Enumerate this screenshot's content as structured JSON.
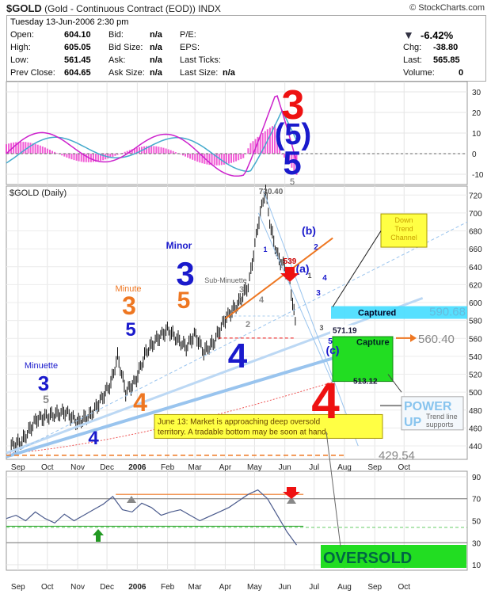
{
  "header": {
    "symbol": "$GOLD",
    "description": "(Gold - Continuous Contract (EOD))",
    "exchange": "INDX",
    "watermark": "© StockCharts.com",
    "date": "Tuesday 13-Jun-2006 2:30 pm"
  },
  "quote": {
    "open_label": "Open:",
    "open": "604.10",
    "high_label": "High:",
    "high": "605.05",
    "low_label": "Low:",
    "low": "561.45",
    "prev_label": "Prev Close:",
    "prev": "604.65",
    "bid_label": "Bid:",
    "bid": "n/a",
    "bidsize_label": "Bid Size:",
    "bidsize": "n/a",
    "ask_label": "Ask:",
    "ask": "n/a",
    "asksize_label": "Ask Size:",
    "asksize": "n/a",
    "pe_label": "P/E:",
    "eps_label": "EPS:",
    "lastticks_label": "Last Ticks:",
    "lastsize_label": "Last Size:",
    "lastsize": "n/a",
    "pct": "-6.42%",
    "chg_label": "Chg:",
    "chg": "-38.80",
    "last_label": "Last:",
    "last": "565.85",
    "vol_label": "Volume:",
    "vol": "0"
  },
  "colors": {
    "red": "#ee1111",
    "blue": "#1a1acc",
    "orange": "#ee7722",
    "lightblue": "#88bbee",
    "green": "#22dd22",
    "cyan": "#44ddff"
  },
  "chart_data": [
    {
      "type": "line",
      "panel": "MACD",
      "ylim": [
        -15,
        35
      ],
      "yticks": [
        30,
        20,
        10,
        0,
        -10
      ],
      "macd_end": -8,
      "signal_end": 6
    },
    {
      "type": "line",
      "panel": "price",
      "title": "$GOLD (Daily)",
      "ylim": [
        425,
        730
      ],
      "yticks": [
        720,
        700,
        680,
        660,
        640,
        620,
        600,
        580,
        560,
        540,
        520,
        500,
        480,
        460,
        440
      ],
      "x_ticks": [
        "Sep",
        "Oct",
        "Nov",
        "Dec",
        "2006",
        "Feb",
        "Mar",
        "Apr",
        "May",
        "Jun",
        "Jul",
        "Aug",
        "Sep",
        "Oct"
      ],
      "price_points": [
        [
          "2005-08-25",
          440
        ],
        [
          "2005-09-05",
          445
        ],
        [
          "2005-09-20",
          470
        ],
        [
          "2005-10-05",
          474
        ],
        [
          "2005-10-20",
          478
        ],
        [
          "2005-11-01",
          466
        ],
        [
          "2005-11-15",
          475
        ],
        [
          "2005-11-25",
          492
        ],
        [
          "2005-12-05",
          510
        ],
        [
          "2005-12-12",
          540
        ],
        [
          "2005-12-20",
          500
        ],
        [
          "2005-12-30",
          512
        ],
        [
          "2006-01-10",
          545
        ],
        [
          "2006-01-20",
          558
        ],
        [
          "2006-02-01",
          570
        ],
        [
          "2006-02-10",
          560
        ],
        [
          "2006-02-20",
          550
        ],
        [
          "2006-03-01",
          565
        ],
        [
          "2006-03-10",
          545
        ],
        [
          "2006-03-20",
          555
        ],
        [
          "2006-04-01",
          582
        ],
        [
          "2006-04-15",
          600
        ],
        [
          "2006-04-25",
          620
        ],
        [
          "2006-05-05",
          690
        ],
        [
          "2006-05-12",
          726
        ],
        [
          "2006-05-18",
          680
        ],
        [
          "2006-05-25",
          650
        ],
        [
          "2006-06-01",
          640
        ],
        [
          "2006-06-06",
          625
        ],
        [
          "2006-06-13",
          566
        ]
      ],
      "levels": [
        {
          "label": "590.68",
          "value": 590.68
        },
        {
          "label": "560.40",
          "value": 560.4
        },
        {
          "label": "429.54",
          "value": 429.54
        }
      ],
      "annotations": {
        "high": "730.40",
        "l539": "539",
        "l571": "571.19",
        "l513": "513.12",
        "captured": "Captured",
        "capture": "Capture",
        "minute": "Minute",
        "minuette": "Minuette",
        "minor": "Minor",
        "subminuette": "Sub-Minuette",
        "downtrend": "Down Trend Channel",
        "power": "POWER",
        "up": "UP",
        "trendline": "Trend line supports",
        "note": "June 13: Market is approaching deep oversold territory.  A tradable bottom may be soon at hand.",
        "macd_wave_3": "3",
        "macd_wave_5p": "(5)",
        "macd_wave_5": "5",
        "macd_wave_5s": "5",
        "wave_big4": "4",
        "wave_blue4a": "4",
        "wave_blue4b": "4",
        "wave_blue3a": "3",
        "wave_blue5a": "5",
        "wave_or3": "3",
        "wave_or4": "4",
        "wave_or5": "5",
        "wave_g5": "5",
        "wave_minor3": "3",
        "wave_b": "(b)",
        "wave_a": "(a)",
        "wave_c": "(c)",
        "s1": "1",
        "s2": "2",
        "s3": "3",
        "s4": "4",
        "t1": "1",
        "t2": "2",
        "t3": "3",
        "t4": "4",
        "t5": "5",
        "t3b": "3",
        "t1b": "1"
      }
    },
    {
      "type": "line",
      "panel": "RSI",
      "ylim": [
        5,
        95
      ],
      "yticks": [
        90,
        70,
        50,
        30,
        10
      ],
      "x_ticks": [
        "Sep",
        "Oct",
        "Nov",
        "Dec",
        "2006",
        "Feb",
        "Mar",
        "Apr",
        "May",
        "Jun",
        "Jul",
        "Aug",
        "Sep",
        "Oct"
      ],
      "oversold_label": "OVERSOLD",
      "values": [
        52,
        55,
        50,
        58,
        52,
        48,
        56,
        50,
        55,
        60,
        65,
        72,
        60,
        58,
        66,
        62,
        55,
        58,
        60,
        55,
        50,
        54,
        58,
        62,
        68,
        74,
        78,
        70,
        55,
        40,
        28
      ]
    }
  ]
}
